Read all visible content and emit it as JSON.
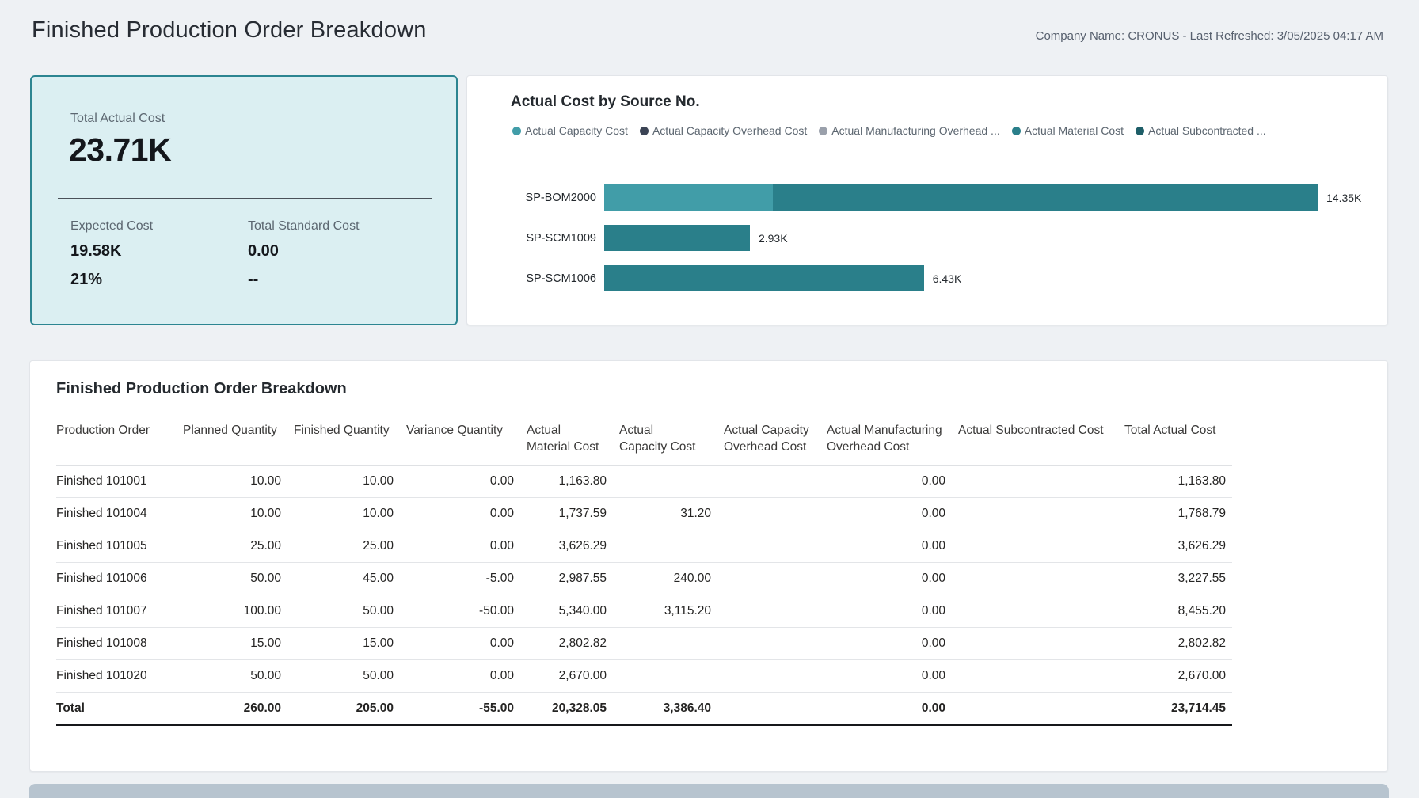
{
  "page": {
    "title": "Finished Production Order Breakdown",
    "subtitle": "Company Name: CRONUS - Last Refreshed: 3/05/2025 04:17 AM"
  },
  "kpi_card": {
    "primary_label": "Total Actual Cost",
    "primary_value": "23.71K",
    "secondary": [
      {
        "label": "Expected Cost",
        "value": "19.58K",
        "sub_value": "21%"
      },
      {
        "label": "Total Standard Cost",
        "value": "0.00",
        "sub_value": "--"
      }
    ],
    "colors": {
      "background": "#dbeff2",
      "border": "#2c8591"
    }
  },
  "chart_data": {
    "type": "bar",
    "orientation": "horizontal",
    "title": "Actual Cost by Source No.",
    "legend_position": "top",
    "grid": false,
    "xlim": [
      0,
      14.35
    ],
    "legend": [
      {
        "label": "Actual Capacity Cost",
        "color": "#419da8"
      },
      {
        "label": "Actual Capacity Overhead Cost",
        "color": "#3b4455"
      },
      {
        "label": "Actual Manufacturing Overhead ...",
        "color": "#9aa0ab"
      },
      {
        "label": "Actual Material Cost",
        "color": "#2a7f8a"
      },
      {
        "label": "Actual Subcontracted ...",
        "color": "#1e5e68"
      }
    ],
    "categories": [
      "SP-BOM2000",
      "SP-SCM1009",
      "SP-SCM1006"
    ],
    "bars": [
      {
        "category": "SP-BOM2000",
        "total": 14.35,
        "total_label": "14.35K",
        "segments": [
          {
            "series": "Actual Capacity Cost",
            "value": 3.39,
            "color": "#419da8"
          },
          {
            "series": "Actual Material Cost",
            "value": 10.96,
            "color": "#2a7f8a"
          }
        ]
      },
      {
        "category": "SP-SCM1009",
        "total": 2.93,
        "total_label": "2.93K",
        "segments": [
          {
            "series": "Actual Material Cost",
            "value": 2.93,
            "color": "#2a7f8a"
          }
        ]
      },
      {
        "category": "SP-SCM1006",
        "total": 6.43,
        "total_label": "6.43K",
        "segments": [
          {
            "series": "Actual Material Cost",
            "value": 6.43,
            "color": "#2a7f8a"
          }
        ]
      }
    ]
  },
  "table": {
    "title": "Finished Production Order Breakdown",
    "columns": [
      "Production Order",
      "Planned Quantity",
      "Finished Quantity",
      "Variance Quantity",
      "Actual\nMaterial Cost",
      "Actual\nCapacity Cost",
      "Actual Capacity\nOverhead Cost",
      "Actual Manufacturing\nOverhead Cost",
      "Actual Subcontracted Cost",
      "Total Actual Cost"
    ],
    "rows": [
      [
        "Finished 101001",
        "10.00",
        "10.00",
        "0.00",
        "1,163.80",
        "",
        "",
        "0.00",
        "",
        "1,163.80"
      ],
      [
        "Finished 101004",
        "10.00",
        "10.00",
        "0.00",
        "1,737.59",
        "31.20",
        "",
        "0.00",
        "",
        "1,768.79"
      ],
      [
        "Finished 101005",
        "25.00",
        "25.00",
        "0.00",
        "3,626.29",
        "",
        "",
        "0.00",
        "",
        "3,626.29"
      ],
      [
        "Finished 101006",
        "50.00",
        "45.00",
        "-5.00",
        "2,987.55",
        "240.00",
        "",
        "0.00",
        "",
        "3,227.55"
      ],
      [
        "Finished 101007",
        "100.00",
        "50.00",
        "-50.00",
        "5,340.00",
        "3,115.20",
        "",
        "0.00",
        "",
        "8,455.20"
      ],
      [
        "Finished 101008",
        "15.00",
        "15.00",
        "0.00",
        "2,802.82",
        "",
        "",
        "0.00",
        "",
        "2,802.82"
      ],
      [
        "Finished 101020",
        "50.00",
        "50.00",
        "0.00",
        "2,670.00",
        "",
        "",
        "0.00",
        "",
        "2,670.00"
      ]
    ],
    "total_row": [
      "Total",
      "260.00",
      "205.00",
      "-55.00",
      "20,328.05",
      "3,386.40",
      "",
      "0.00",
      "",
      "23,714.45"
    ]
  }
}
